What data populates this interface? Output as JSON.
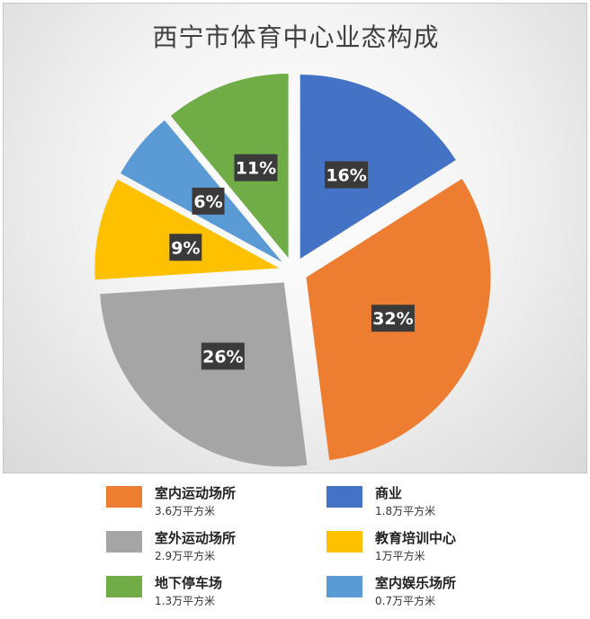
{
  "chart_data": {
    "type": "pie",
    "title": "西宁市体育中心业态构成",
    "slices": [
      {
        "name": "商业",
        "value": 16,
        "label": "16%",
        "area": "1.8万平方米",
        "color": "#4472C4"
      },
      {
        "name": "室内运动场所",
        "value": 32,
        "label": "32%",
        "area": "3.6万平方米",
        "color": "#ED7D31"
      },
      {
        "name": "室外运动场所",
        "value": 26,
        "label": "26%",
        "area": "2.9万平方米",
        "color": "#A5A5A5"
      },
      {
        "name": "教育培训中心",
        "value": 9,
        "label": "9%",
        "area": "1万平方米",
        "color": "#FFC000"
      },
      {
        "name": "室内娱乐场所",
        "value": 6,
        "label": "6%",
        "area": "0.7万平方米",
        "color": "#5B9BD5"
      },
      {
        "name": "地下停车场",
        "value": 11,
        "label": "11%",
        "area": "1.3万平方米",
        "color": "#70AD47"
      }
    ],
    "legend_order": [
      "室内运动场所",
      "商业",
      "室外运动场所",
      "教育培训中心",
      "地下停车场",
      "室内娱乐场所"
    ],
    "legend_position": "bottom",
    "exploded": true
  }
}
